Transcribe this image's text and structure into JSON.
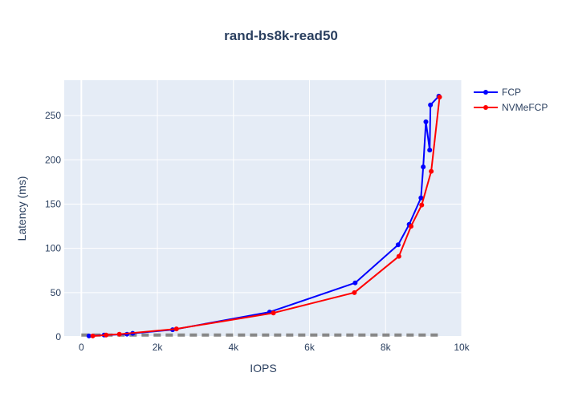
{
  "chart_data": {
    "type": "line",
    "title": "rand-bs8k-read50",
    "xlabel": "IOPS",
    "ylabel": "Latency (ms)",
    "xlim": [
      -450,
      10000
    ],
    "ylim": [
      0,
      290
    ],
    "x_ticks": [
      0,
      2000,
      4000,
      6000,
      8000,
      10000
    ],
    "x_tick_labels": [
      "0",
      "2k",
      "4k",
      "6k",
      "8k",
      "10k"
    ],
    "y_ticks": [
      0,
      50,
      100,
      150,
      200,
      250
    ],
    "y_tick_labels": [
      "0",
      "50",
      "100",
      "150",
      "200",
      "250"
    ],
    "grid": true,
    "legend_position": "top-right",
    "plot_background": "#e5ecf6",
    "reference_line": {
      "style": "dashed",
      "color": "#888888",
      "x": [
        0,
        9400
      ],
      "y": [
        2,
        2
      ]
    },
    "series": [
      {
        "name": "FCP",
        "color": "#0000ff",
        "x": [
          200,
          600,
          1200,
          1350,
          2400,
          4950,
          7200,
          8330,
          8620,
          8930,
          8990,
          9060,
          9160,
          9180,
          9400
        ],
        "y": [
          1,
          2,
          3,
          4,
          8,
          28,
          61,
          104,
          127,
          157,
          192,
          243,
          211,
          262,
          272
        ]
      },
      {
        "name": "NVMeFCP",
        "color": "#ff0000",
        "x": [
          300,
          650,
          1000,
          2500,
          5050,
          7180,
          8350,
          8670,
          8950,
          9200,
          9420
        ],
        "y": [
          1,
          2,
          3,
          9,
          27,
          50,
          91,
          125,
          149,
          187,
          271
        ]
      }
    ]
  }
}
